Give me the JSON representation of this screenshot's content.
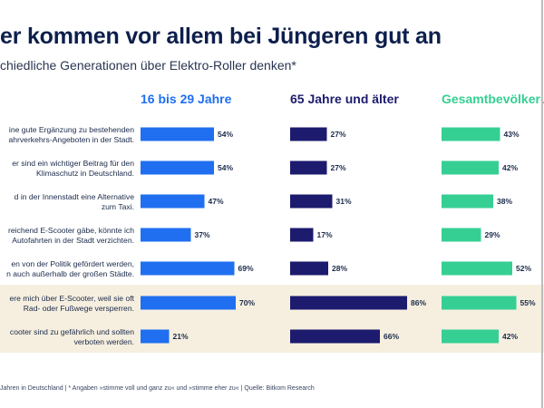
{
  "header": {
    "title": "er kommen vor allem bei Jüngeren gut an",
    "subtitle": "chiedliche Generationen über Elektro-Roller denken*"
  },
  "footer": {
    "note": "Jahren in Deutschland | * Angaben »stimme voll und ganz zu« und »stimme eher zu« | Quelle: Bitkom Research"
  },
  "chart_data": {
    "type": "bar",
    "orientation": "horizontal",
    "categories": [
      [
        "ine gute Ergänzung zu bestehenden",
        "ahrverkehrs-Angeboten in der Stadt."
      ],
      [
        "er sind ein wichtiger Beitrag für den",
        "Klimaschutz in Deutschland."
      ],
      [
        "d in der Innenstadt eine Alternative",
        "zum Taxi."
      ],
      [
        "reichend E-Scooter gäbe, könnte ich",
        "Autofahrten in der Stadt verzichten."
      ],
      [
        "en von der Politik gefördert werden,",
        "n auch außerhalb der großen Städte."
      ],
      [
        "ere mich über E-Scooter, weil sie oft",
        "Rad- oder Fußwege versperren."
      ],
      [
        "cooter sind zu gefährlich und sollten",
        "verboten werden."
      ]
    ],
    "series": [
      {
        "name": "16 bis 29 Jahre",
        "color": "#1f6ff0",
        "values": [
          54,
          54,
          47,
          37,
          69,
          70,
          21
        ]
      },
      {
        "name": "65 Jahre und älter",
        "color": "#1c1b6e",
        "values": [
          27,
          27,
          31,
          17,
          28,
          86,
          66
        ]
      },
      {
        "name": "Gesamtbevölkeru",
        "color": "#35cf94",
        "values": [
          43,
          42,
          38,
          29,
          52,
          55,
          42
        ]
      }
    ],
    "value_suffix": "%",
    "highlighted_rows": [
      5,
      6
    ],
    "highlight_color": "#f6efdf",
    "grid": false,
    "legend": "column headers"
  }
}
